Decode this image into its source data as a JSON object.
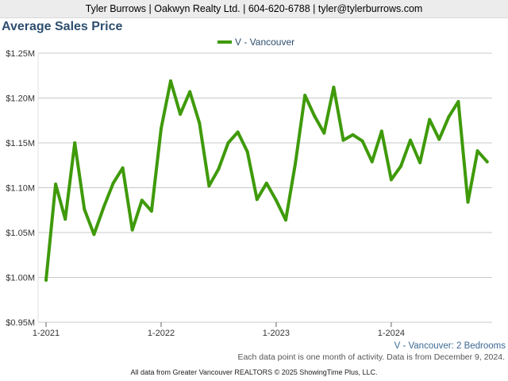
{
  "header": {
    "contact": "Tyler Burrows | Oakwyn Realty Ltd. | 604-620-6788 | tyler@tylerburrows.com"
  },
  "footer": {
    "note": "Each data point is one month of activity. Data is from December 9, 2024.",
    "credits": "All data from Greater Vancouver REALTORS © 2025 ShowingTime Plus, LLC."
  },
  "colors": {
    "series": "#3f9a0a",
    "grid": "#c8c8c8",
    "title": "#2d4e6e"
  },
  "chart_data": {
    "type": "line",
    "title": "Average Sales Price",
    "subtitle": "V - Vancouver: 2 Bedrooms",
    "xlabel": "",
    "ylabel": "",
    "ylim": [
      0.95,
      1.25
    ],
    "y_unit": "$M",
    "yticks": [
      "$0.95M",
      "$1.00M",
      "$1.05M",
      "$1.10M",
      "$1.15M",
      "$1.20M",
      "$1.25M"
    ],
    "xticks": [
      "1-2021",
      "1-2022",
      "1-2023",
      "1-2024"
    ],
    "legend_position": "top-center",
    "grid": true,
    "series": [
      {
        "name": "V - Vancouver",
        "x": [
          "2021-01",
          "2021-02",
          "2021-03",
          "2021-04",
          "2021-05",
          "2021-06",
          "2021-07",
          "2021-08",
          "2021-09",
          "2021-10",
          "2021-11",
          "2021-12",
          "2022-01",
          "2022-02",
          "2022-03",
          "2022-04",
          "2022-05",
          "2022-06",
          "2022-07",
          "2022-08",
          "2022-09",
          "2022-10",
          "2022-11",
          "2022-12",
          "2023-01",
          "2023-02",
          "2023-03",
          "2023-04",
          "2023-05",
          "2023-06",
          "2023-07",
          "2023-08",
          "2023-09",
          "2023-10",
          "2023-11",
          "2023-12",
          "2024-01",
          "2024-02",
          "2024-03",
          "2024-04",
          "2024-05",
          "2024-06",
          "2024-07",
          "2024-08",
          "2024-09",
          "2024-10",
          "2024-11",
          "2024-12"
        ],
        "values": [
          0.997,
          1.104,
          1.065,
          1.15,
          1.076,
          1.048,
          1.078,
          1.105,
          1.122,
          1.053,
          1.086,
          1.074,
          1.166,
          1.219,
          1.182,
          1.207,
          1.172,
          1.102,
          1.121,
          1.15,
          1.162,
          1.14,
          1.087,
          1.105,
          1.086,
          1.064,
          1.127,
          1.203,
          1.18,
          1.161,
          1.212,
          1.153,
          1.159,
          1.152,
          1.129,
          1.163,
          1.109,
          1.124,
          1.153,
          1.128,
          1.176,
          1.154,
          1.179,
          1.196,
          1.084,
          1.141,
          1.129,
          null
        ]
      }
    ]
  }
}
